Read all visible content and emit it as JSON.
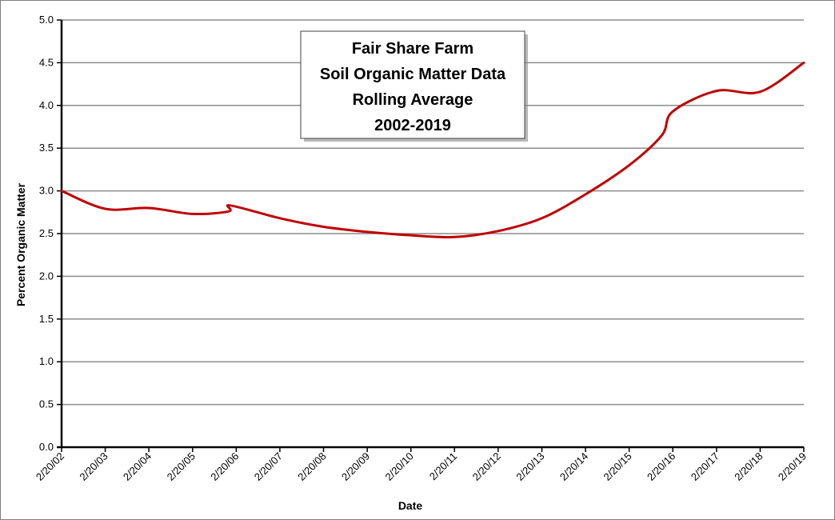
{
  "chart_data": {
    "type": "line",
    "title_lines": [
      "Fair Share Farm",
      "Soil Organic Matter Data",
      "Rolling Average",
      "2002-2019"
    ],
    "xlabel": "Date",
    "ylabel": "Percent Organic Matter",
    "x_tick_labels": [
      "2/20/02",
      "2/20/03",
      "2/20/04",
      "2/20/05",
      "2/20/06",
      "2/20/07",
      "2/20/08",
      "2/20/09",
      "2/20/10",
      "2/20/11",
      "2/20/12",
      "2/20/13",
      "2/20/14",
      "2/20/15",
      "2/20/16",
      "2/20/17",
      "2/20/18",
      "2/20/19"
    ],
    "y_tick_labels": [
      "0.0",
      "0.5",
      "1.0",
      "1.5",
      "2.0",
      "2.5",
      "3.0",
      "3.5",
      "4.0",
      "4.5",
      "5.0"
    ],
    "ylim": [
      0,
      5.0
    ],
    "ystep": 0.5,
    "grid": "horizontal",
    "legend": "none",
    "series": [
      {
        "color": "#c00000",
        "points": [
          [
            "2/20/02",
            3.0
          ],
          [
            "2/20/03",
            2.79
          ],
          [
            "2/20/04",
            2.8
          ],
          [
            "2/20/05",
            2.73
          ],
          [
            "12/20/05",
            2.76
          ],
          [
            "1/1/06",
            2.83
          ],
          [
            "2/20/07",
            2.68
          ],
          [
            "2/20/08",
            2.58
          ],
          [
            "2/20/09",
            2.52
          ],
          [
            "2/20/10",
            2.48
          ],
          [
            "2/20/11",
            2.46
          ],
          [
            "2/20/12",
            2.53
          ],
          [
            "2/20/13",
            2.68
          ],
          [
            "2/20/14",
            2.96
          ],
          [
            "2/20/15",
            3.3
          ],
          [
            "11/20/15",
            3.65
          ],
          [
            "2/20/16",
            3.93
          ],
          [
            "2/20/17",
            4.17
          ],
          [
            "2/20/18",
            4.16
          ],
          [
            "2/20/19",
            4.5
          ]
        ]
      }
    ]
  }
}
